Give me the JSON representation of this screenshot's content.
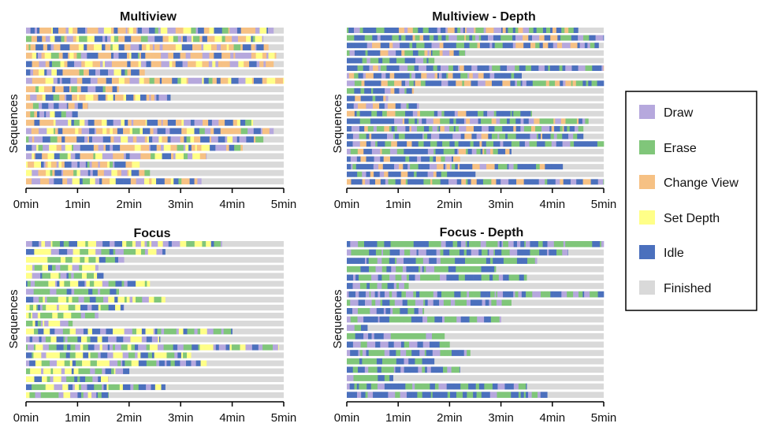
{
  "legend": {
    "entries": [
      {
        "label": "Draw",
        "color": "#b6a8dd"
      },
      {
        "label": "Erase",
        "color": "#80c67a"
      },
      {
        "label": "Change View",
        "color": "#f6c184"
      },
      {
        "label": "Set Depth",
        "color": "#ffff88"
      },
      {
        "label": "Idle",
        "color": "#4b70bd"
      },
      {
        "label": "Finished",
        "color": "#d9d9d9"
      }
    ]
  },
  "chart_data": [
    {
      "type": "bar",
      "title": "Multiview",
      "ylabel": "Sequences",
      "xlabel": "",
      "xlim": [
        0,
        5
      ],
      "xticks": [
        0,
        1,
        2,
        3,
        4,
        5
      ],
      "xtick_labels": [
        "0min",
        "1min",
        "2min",
        "3min",
        "4min",
        "5min"
      ],
      "categories": [
        "Draw",
        "Erase",
        "Change View",
        "Set Depth",
        "Idle"
      ],
      "pattern": "Draw,Idle,Change View,Draw,Change View,Set Depth,Idle,Change View,Erase,Draw,Set Depth,Change View,Idle",
      "sequence_end_min": [
        4.8,
        4.6,
        4.7,
        4.85,
        4.8,
        2.3,
        5.0,
        1.8,
        2.8,
        1.2,
        1.0,
        4.4,
        4.8,
        4.6,
        4.2,
        3.5,
        2.2,
        2.4,
        3.4
      ]
    },
    {
      "type": "bar",
      "title": "Multiview - Depth",
      "ylabel": "Sequences",
      "xlabel": "",
      "xlim": [
        0,
        5
      ],
      "xticks": [
        0,
        1,
        2,
        3,
        4,
        5
      ],
      "xtick_labels": [
        "0min",
        "1min",
        "2min",
        "3min",
        "4min",
        "5min"
      ],
      "categories": [
        "Draw",
        "Erase",
        "Change View",
        "Set Depth",
        "Idle"
      ],
      "pattern": "Idle,Draw,Erase,Idle,Change View,Idle,Draw,Erase,Idle,Change View,Idle,Erase",
      "sequence_end_min": [
        4.5,
        5.0,
        4.9,
        2.3,
        1.7,
        5.0,
        3.4,
        5.0,
        1.3,
        0.8,
        1.4,
        3.6,
        4.7,
        4.6,
        4.6,
        5.0,
        3.2,
        2.2,
        4.2,
        2.5,
        5.0
      ]
    },
    {
      "type": "bar",
      "title": "Focus",
      "ylabel": "Sequences",
      "xlabel": "",
      "xlim": [
        0,
        5
      ],
      "xticks": [
        0,
        1,
        2,
        3,
        4,
        5
      ],
      "xtick_labels": [
        "0min",
        "1min",
        "2min",
        "3min",
        "4min",
        "5min"
      ],
      "categories": [
        "Draw",
        "Erase",
        "Set Depth",
        "Idle"
      ],
      "pattern": "Draw,Set Depth,Erase,Idle,Set Depth,Erase,Draw,Set Depth,Idle,Erase",
      "sequence_end_min": [
        3.8,
        2.7,
        1.9,
        1.4,
        1.5,
        2.4,
        1.8,
        2.7,
        1.9,
        1.4,
        0.9,
        4.0,
        2.6,
        4.9,
        3.2,
        3.5,
        2.0,
        1.6,
        2.7,
        1.6
      ]
    },
    {
      "type": "bar",
      "title": "Focus - Depth",
      "ylabel": "Sequences",
      "xlabel": "",
      "xlim": [
        0,
        5
      ],
      "xticks": [
        0,
        1,
        2,
        3,
        4,
        5
      ],
      "xtick_labels": [
        "0min",
        "1min",
        "2min",
        "3min",
        "4min",
        "5min"
      ],
      "categories": [
        "Draw",
        "Erase",
        "Idle"
      ],
      "pattern": "Idle,Erase,Draw,Idle,Erase,Idle,Draw,Erase",
      "sequence_end_min": [
        5.0,
        4.3,
        3.7,
        2.9,
        3.5,
        1.2,
        5.0,
        3.2,
        1.5,
        3.0,
        0.4,
        1.9,
        2.0,
        2.4,
        1.7,
        2.2,
        0.9,
        3.5,
        3.9
      ]
    }
  ]
}
